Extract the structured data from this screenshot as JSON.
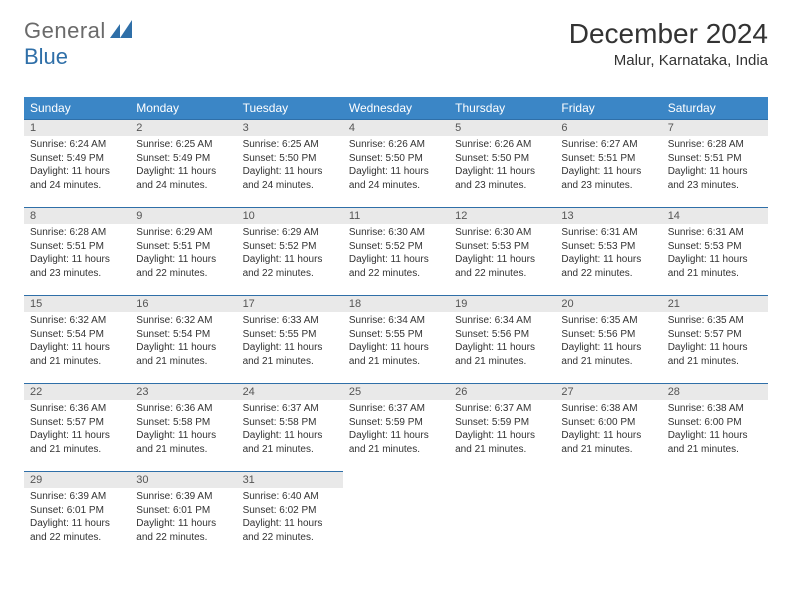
{
  "brand": {
    "word1": "General",
    "word2": "Blue"
  },
  "title": "December 2024",
  "location": "Malur, Karnataka, India",
  "colors": {
    "header_bg": "#3b86c6",
    "header_text": "#ffffff",
    "daynum_bg": "#e9e9e9",
    "daynum_border": "#2f6fa8",
    "body_text": "#333333",
    "logo_gray": "#6a6a6a",
    "logo_blue": "#2f6fa8"
  },
  "weekdays": [
    "Sunday",
    "Monday",
    "Tuesday",
    "Wednesday",
    "Thursday",
    "Friday",
    "Saturday"
  ],
  "weeks": [
    [
      {
        "n": "1",
        "sr": "Sunrise: 6:24 AM",
        "ss": "Sunset: 5:49 PM",
        "d1": "Daylight: 11 hours",
        "d2": "and 24 minutes."
      },
      {
        "n": "2",
        "sr": "Sunrise: 6:25 AM",
        "ss": "Sunset: 5:49 PM",
        "d1": "Daylight: 11 hours",
        "d2": "and 24 minutes."
      },
      {
        "n": "3",
        "sr": "Sunrise: 6:25 AM",
        "ss": "Sunset: 5:50 PM",
        "d1": "Daylight: 11 hours",
        "d2": "and 24 minutes."
      },
      {
        "n": "4",
        "sr": "Sunrise: 6:26 AM",
        "ss": "Sunset: 5:50 PM",
        "d1": "Daylight: 11 hours",
        "d2": "and 24 minutes."
      },
      {
        "n": "5",
        "sr": "Sunrise: 6:26 AM",
        "ss": "Sunset: 5:50 PM",
        "d1": "Daylight: 11 hours",
        "d2": "and 23 minutes."
      },
      {
        "n": "6",
        "sr": "Sunrise: 6:27 AM",
        "ss": "Sunset: 5:51 PM",
        "d1": "Daylight: 11 hours",
        "d2": "and 23 minutes."
      },
      {
        "n": "7",
        "sr": "Sunrise: 6:28 AM",
        "ss": "Sunset: 5:51 PM",
        "d1": "Daylight: 11 hours",
        "d2": "and 23 minutes."
      }
    ],
    [
      {
        "n": "8",
        "sr": "Sunrise: 6:28 AM",
        "ss": "Sunset: 5:51 PM",
        "d1": "Daylight: 11 hours",
        "d2": "and 23 minutes."
      },
      {
        "n": "9",
        "sr": "Sunrise: 6:29 AM",
        "ss": "Sunset: 5:51 PM",
        "d1": "Daylight: 11 hours",
        "d2": "and 22 minutes."
      },
      {
        "n": "10",
        "sr": "Sunrise: 6:29 AM",
        "ss": "Sunset: 5:52 PM",
        "d1": "Daylight: 11 hours",
        "d2": "and 22 minutes."
      },
      {
        "n": "11",
        "sr": "Sunrise: 6:30 AM",
        "ss": "Sunset: 5:52 PM",
        "d1": "Daylight: 11 hours",
        "d2": "and 22 minutes."
      },
      {
        "n": "12",
        "sr": "Sunrise: 6:30 AM",
        "ss": "Sunset: 5:53 PM",
        "d1": "Daylight: 11 hours",
        "d2": "and 22 minutes."
      },
      {
        "n": "13",
        "sr": "Sunrise: 6:31 AM",
        "ss": "Sunset: 5:53 PM",
        "d1": "Daylight: 11 hours",
        "d2": "and 22 minutes."
      },
      {
        "n": "14",
        "sr": "Sunrise: 6:31 AM",
        "ss": "Sunset: 5:53 PM",
        "d1": "Daylight: 11 hours",
        "d2": "and 21 minutes."
      }
    ],
    [
      {
        "n": "15",
        "sr": "Sunrise: 6:32 AM",
        "ss": "Sunset: 5:54 PM",
        "d1": "Daylight: 11 hours",
        "d2": "and 21 minutes."
      },
      {
        "n": "16",
        "sr": "Sunrise: 6:32 AM",
        "ss": "Sunset: 5:54 PM",
        "d1": "Daylight: 11 hours",
        "d2": "and 21 minutes."
      },
      {
        "n": "17",
        "sr": "Sunrise: 6:33 AM",
        "ss": "Sunset: 5:55 PM",
        "d1": "Daylight: 11 hours",
        "d2": "and 21 minutes."
      },
      {
        "n": "18",
        "sr": "Sunrise: 6:34 AM",
        "ss": "Sunset: 5:55 PM",
        "d1": "Daylight: 11 hours",
        "d2": "and 21 minutes."
      },
      {
        "n": "19",
        "sr": "Sunrise: 6:34 AM",
        "ss": "Sunset: 5:56 PM",
        "d1": "Daylight: 11 hours",
        "d2": "and 21 minutes."
      },
      {
        "n": "20",
        "sr": "Sunrise: 6:35 AM",
        "ss": "Sunset: 5:56 PM",
        "d1": "Daylight: 11 hours",
        "d2": "and 21 minutes."
      },
      {
        "n": "21",
        "sr": "Sunrise: 6:35 AM",
        "ss": "Sunset: 5:57 PM",
        "d1": "Daylight: 11 hours",
        "d2": "and 21 minutes."
      }
    ],
    [
      {
        "n": "22",
        "sr": "Sunrise: 6:36 AM",
        "ss": "Sunset: 5:57 PM",
        "d1": "Daylight: 11 hours",
        "d2": "and 21 minutes."
      },
      {
        "n": "23",
        "sr": "Sunrise: 6:36 AM",
        "ss": "Sunset: 5:58 PM",
        "d1": "Daylight: 11 hours",
        "d2": "and 21 minutes."
      },
      {
        "n": "24",
        "sr": "Sunrise: 6:37 AM",
        "ss": "Sunset: 5:58 PM",
        "d1": "Daylight: 11 hours",
        "d2": "and 21 minutes."
      },
      {
        "n": "25",
        "sr": "Sunrise: 6:37 AM",
        "ss": "Sunset: 5:59 PM",
        "d1": "Daylight: 11 hours",
        "d2": "and 21 minutes."
      },
      {
        "n": "26",
        "sr": "Sunrise: 6:37 AM",
        "ss": "Sunset: 5:59 PM",
        "d1": "Daylight: 11 hours",
        "d2": "and 21 minutes."
      },
      {
        "n": "27",
        "sr": "Sunrise: 6:38 AM",
        "ss": "Sunset: 6:00 PM",
        "d1": "Daylight: 11 hours",
        "d2": "and 21 minutes."
      },
      {
        "n": "28",
        "sr": "Sunrise: 6:38 AM",
        "ss": "Sunset: 6:00 PM",
        "d1": "Daylight: 11 hours",
        "d2": "and 21 minutes."
      }
    ],
    [
      {
        "n": "29",
        "sr": "Sunrise: 6:39 AM",
        "ss": "Sunset: 6:01 PM",
        "d1": "Daylight: 11 hours",
        "d2": "and 22 minutes."
      },
      {
        "n": "30",
        "sr": "Sunrise: 6:39 AM",
        "ss": "Sunset: 6:01 PM",
        "d1": "Daylight: 11 hours",
        "d2": "and 22 minutes."
      },
      {
        "n": "31",
        "sr": "Sunrise: 6:40 AM",
        "ss": "Sunset: 6:02 PM",
        "d1": "Daylight: 11 hours",
        "d2": "and 22 minutes."
      },
      {
        "empty": true
      },
      {
        "empty": true
      },
      {
        "empty": true
      },
      {
        "empty": true
      }
    ]
  ]
}
